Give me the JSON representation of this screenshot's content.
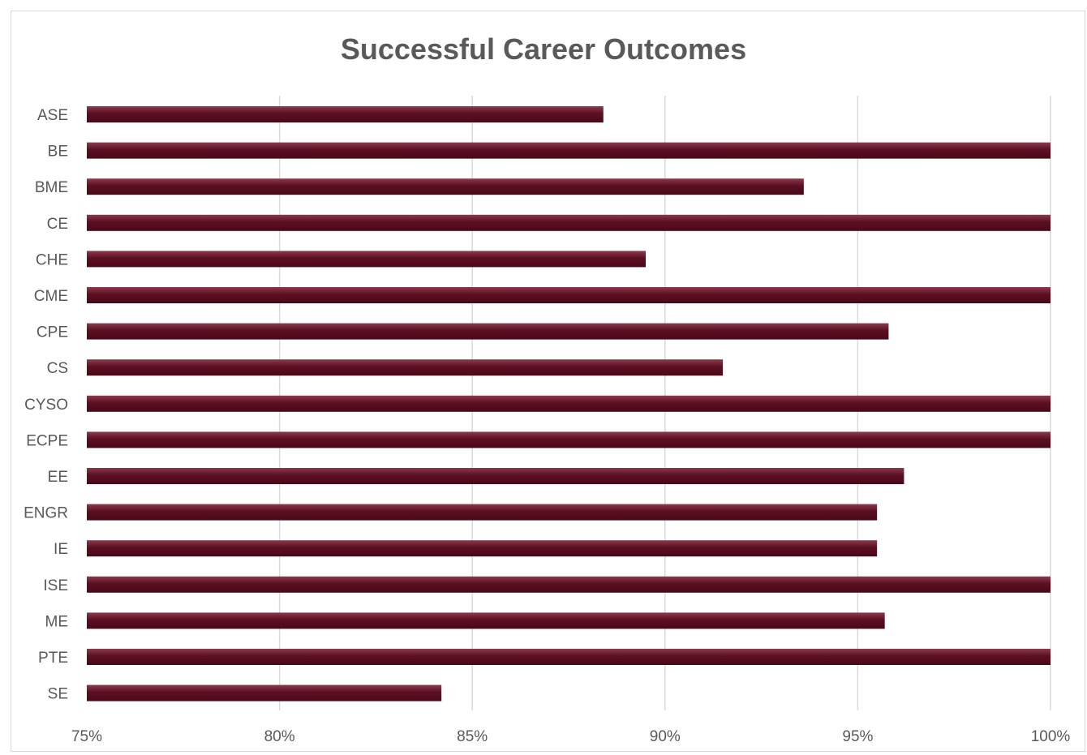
{
  "chart_data": {
    "type": "bar",
    "orientation": "horizontal",
    "title": "Successful Career Outcomes",
    "xlabel": "",
    "ylabel": "",
    "categories": [
      "ASE",
      "BE",
      "BME",
      "CE",
      "CHE",
      "CME",
      "CPE",
      "CS",
      "CYSO",
      "ECPE",
      "EE",
      "ENGR",
      "IE",
      "ISE",
      "ME",
      "PTE",
      "SE"
    ],
    "values": [
      0.884,
      1.0,
      0.936,
      1.0,
      0.895,
      1.0,
      0.958,
      0.915,
      1.0,
      1.0,
      0.962,
      0.955,
      0.955,
      1.0,
      0.957,
      1.0,
      0.842
    ],
    "xlim": [
      0.75,
      1.0
    ],
    "xticks": [
      0.75,
      0.8,
      0.85,
      0.9,
      0.95,
      1.0
    ],
    "xtick_labels": [
      "75%",
      "80%",
      "85%",
      "90%",
      "95%",
      "100%"
    ],
    "grid": "vertical",
    "legend": "none",
    "bar_color": "#5c0f22"
  }
}
